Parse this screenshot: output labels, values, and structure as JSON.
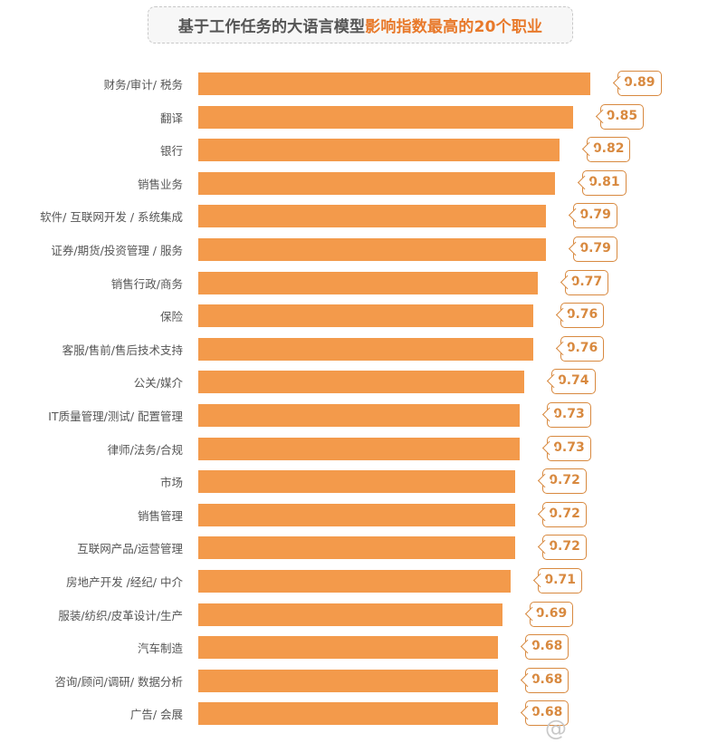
{
  "title": {
    "part1": "基于工作任务的大语言模型",
    "part2": "影响指数最高的20个职业"
  },
  "colors": {
    "bar": "#f39a4b",
    "callout": "#d8893f",
    "title_highlight": "#e8792a",
    "label": "#555555"
  },
  "watermark": "@",
  "chart_data": {
    "type": "bar",
    "orientation": "horizontal",
    "title": "基于工作任务的大语言模型影响指数最高的20个职业",
    "xlabel": "",
    "ylabel": "",
    "grid": false,
    "legend": null,
    "categories": [
      "财务/审计/ 税务",
      "翻译",
      "银行",
      "销售业务",
      "软件/ 互联网开发 / 系统集成",
      "证券/期货/投资管理 / 服务",
      "销售行政/商务",
      "保险",
      "客服/售前/售后技术支持",
      "公关/媒介",
      "IT质量管理/测试/ 配置管理",
      "律师/法务/合规",
      "市场",
      "销售管理",
      "互联网产品/运营管理",
      "房地产开发 /经纪/ 中介",
      "服装/纺织/皮革设计/生产",
      "汽车制造",
      "咨询/顾问/调研/ 数据分析",
      "广告/ 会展"
    ],
    "values": [
      0.89,
      0.85,
      0.82,
      0.81,
      0.79,
      0.79,
      0.77,
      0.76,
      0.76,
      0.74,
      0.73,
      0.73,
      0.72,
      0.72,
      0.72,
      0.71,
      0.69,
      0.68,
      0.68,
      0.68
    ],
    "value_labels": [
      "0.89",
      "0.85",
      "0.82",
      "0.81",
      "0.79",
      "0.79",
      "0.77",
      "0.76",
      "0.76",
      "0.74",
      "0.73",
      "0.73",
      "0.72",
      "0.72",
      "0.72",
      "0.71",
      "0.69",
      "0.68",
      "0.68",
      "0.68"
    ],
    "xlim": [
      0,
      0.9
    ]
  }
}
